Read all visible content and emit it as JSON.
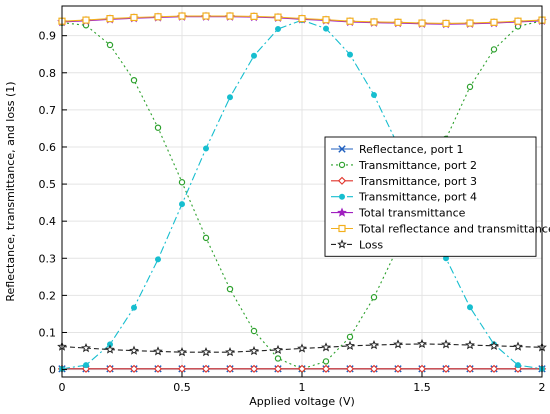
{
  "chart_data": {
    "type": "line",
    "title": "",
    "xlabel": "Applied voltage (V)",
    "ylabel": "Reflectance, transmittance, and loss (1)",
    "xlim": [
      0,
      2
    ],
    "ylim": [
      -0.02,
      0.98
    ],
    "x_ticks": [
      "0",
      "0.5",
      "1",
      "1.5",
      "2"
    ],
    "y_ticks": [
      "0",
      "0.1",
      "0.2",
      "0.3",
      "0.4",
      "0.5",
      "0.6",
      "0.7",
      "0.8",
      "0.9"
    ],
    "grid": true,
    "legend_position": "center-right",
    "x": [
      0,
      0.1,
      0.2,
      0.3,
      0.4,
      0.5,
      0.6,
      0.7,
      0.8,
      0.9,
      1.0,
      1.1,
      1.2,
      1.3,
      1.4,
      1.5,
      1.6,
      1.7,
      1.8,
      1.9,
      2.0
    ],
    "series": [
      {
        "name": "Reflectance, port 1",
        "color": "#1f5fbf",
        "marker": "x",
        "dash": "",
        "values": [
          0.002,
          0.002,
          0.002,
          0.002,
          0.002,
          0.002,
          0.002,
          0.002,
          0.002,
          0.002,
          0.002,
          0.002,
          0.002,
          0.002,
          0.002,
          0.002,
          0.002,
          0.002,
          0.002,
          0.002,
          0.002
        ]
      },
      {
        "name": "Transmittance, port 2",
        "color": "#2ca02c",
        "marker": "circle-open",
        "dash": "2,3",
        "values": [
          0.935,
          0.928,
          0.875,
          0.78,
          0.652,
          0.505,
          0.355,
          0.217,
          0.104,
          0.03,
          0.002,
          0.022,
          0.088,
          0.195,
          0.33,
          0.475,
          0.622,
          0.762,
          0.863,
          0.925,
          0.94
        ]
      },
      {
        "name": "Transmittance, port 3",
        "color": "#e0342b",
        "marker": "diamond-open",
        "dash": "",
        "values": [
          0.002,
          0.002,
          0.002,
          0.002,
          0.002,
          0.002,
          0.002,
          0.002,
          0.002,
          0.002,
          0.002,
          0.002,
          0.002,
          0.002,
          0.002,
          0.002,
          0.002,
          0.002,
          0.002,
          0.002,
          0.002
        ]
      },
      {
        "name": "Transmittance, port 4",
        "color": "#17becf",
        "marker": "dot",
        "dash": "8,3,2,3",
        "values": [
          0.002,
          0.012,
          0.068,
          0.167,
          0.297,
          0.446,
          0.596,
          0.734,
          0.846,
          0.918,
          0.942,
          0.919,
          0.849,
          0.74,
          0.604,
          0.457,
          0.3,
          0.168,
          0.068,
          0.012,
          0.002
        ]
      },
      {
        "name": "Total transmittance",
        "color": "#a020c0",
        "marker": "star",
        "dash": "",
        "values": [
          0.937,
          0.94,
          0.944,
          0.947,
          0.949,
          0.951,
          0.951,
          0.951,
          0.95,
          0.948,
          0.944,
          0.941,
          0.937,
          0.935,
          0.934,
          0.932,
          0.931,
          0.932,
          0.934,
          0.937,
          0.94
        ]
      },
      {
        "name": "Total reflectance and transmittance",
        "color": "#f2b01e",
        "marker": "square-open",
        "dash": "",
        "values": [
          0.939,
          0.942,
          0.946,
          0.949,
          0.951,
          0.953,
          0.953,
          0.953,
          0.952,
          0.95,
          0.946,
          0.943,
          0.939,
          0.937,
          0.936,
          0.934,
          0.933,
          0.934,
          0.936,
          0.939,
          0.942
        ]
      },
      {
        "name": "Loss",
        "color": "#222222",
        "marker": "star-open",
        "dash": "5,3",
        "values": [
          0.062,
          0.058,
          0.054,
          0.051,
          0.049,
          0.047,
          0.047,
          0.047,
          0.05,
          0.053,
          0.057,
          0.06,
          0.064,
          0.066,
          0.068,
          0.069,
          0.068,
          0.066,
          0.064,
          0.062,
          0.06
        ]
      }
    ]
  }
}
